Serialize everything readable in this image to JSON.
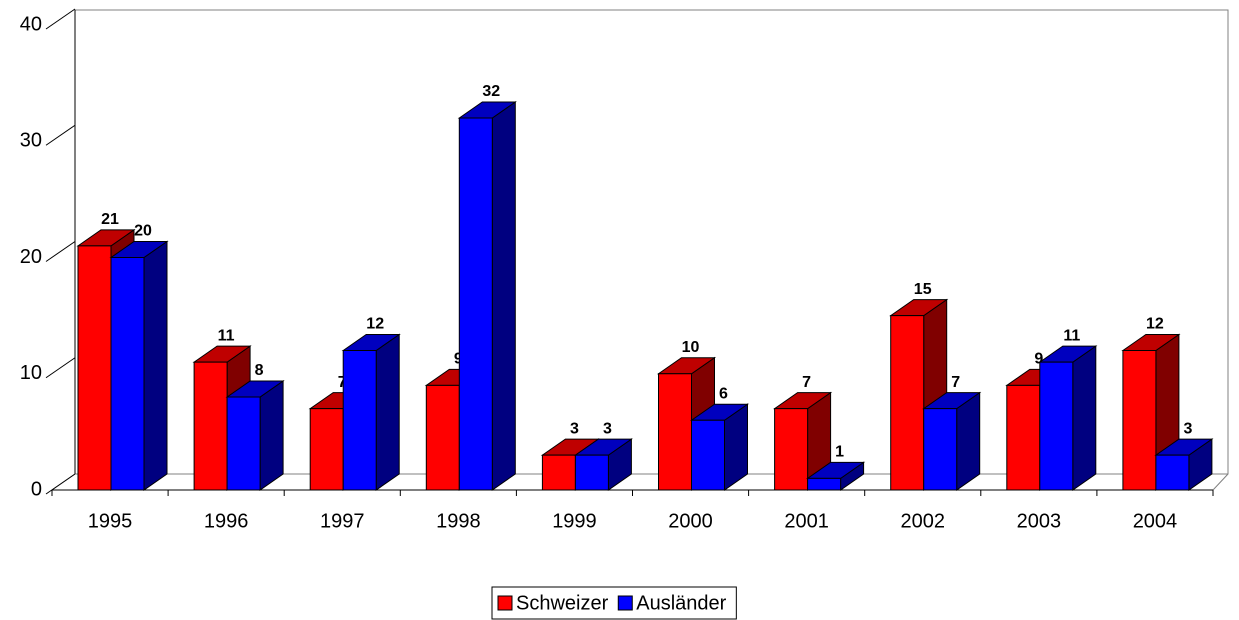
{
  "chart_data": {
    "type": "bar3d",
    "categories": [
      "1995",
      "1996",
      "1997",
      "1998",
      "1999",
      "2000",
      "2001",
      "2002",
      "2003",
      "2004"
    ],
    "series": [
      {
        "name": "Schweizer",
        "color": "#ff0000",
        "values": [
          21,
          11,
          7,
          9,
          3,
          10,
          7,
          15,
          9,
          12
        ]
      },
      {
        "name": "Ausländer",
        "color": "#0000ff",
        "values": [
          20,
          8,
          12,
          32,
          3,
          6,
          1,
          7,
          11,
          3
        ]
      }
    ],
    "ylim": [
      0,
      40
    ],
    "yticks": [
      0,
      10,
      20,
      30,
      40
    ],
    "legend": "bottom"
  }
}
